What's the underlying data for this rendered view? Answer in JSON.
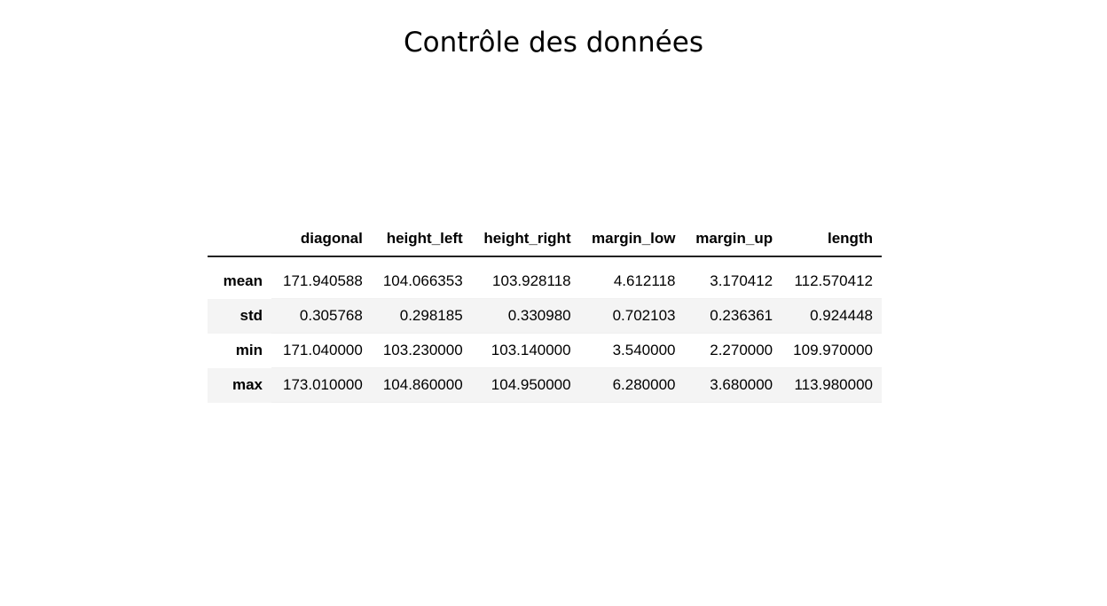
{
  "slide": {
    "title": "Contrôle des données"
  },
  "table": {
    "columns": [
      "diagonal",
      "height_left",
      "height_right",
      "margin_low",
      "margin_up",
      "length"
    ],
    "rows": [
      {
        "label": "mean",
        "values": [
          "171.940588",
          "104.066353",
          "103.928118",
          "4.612118",
          "3.170412",
          "112.570412"
        ]
      },
      {
        "label": "std",
        "values": [
          "0.305768",
          "0.298185",
          "0.330980",
          "0.702103",
          "0.236361",
          "0.924448"
        ]
      },
      {
        "label": "min",
        "values": [
          "171.040000",
          "103.230000",
          "103.140000",
          "3.540000",
          "2.270000",
          "109.970000"
        ]
      },
      {
        "label": "max",
        "values": [
          "173.010000",
          "104.860000",
          "104.950000",
          "6.280000",
          "3.680000",
          "113.980000"
        ]
      }
    ]
  }
}
